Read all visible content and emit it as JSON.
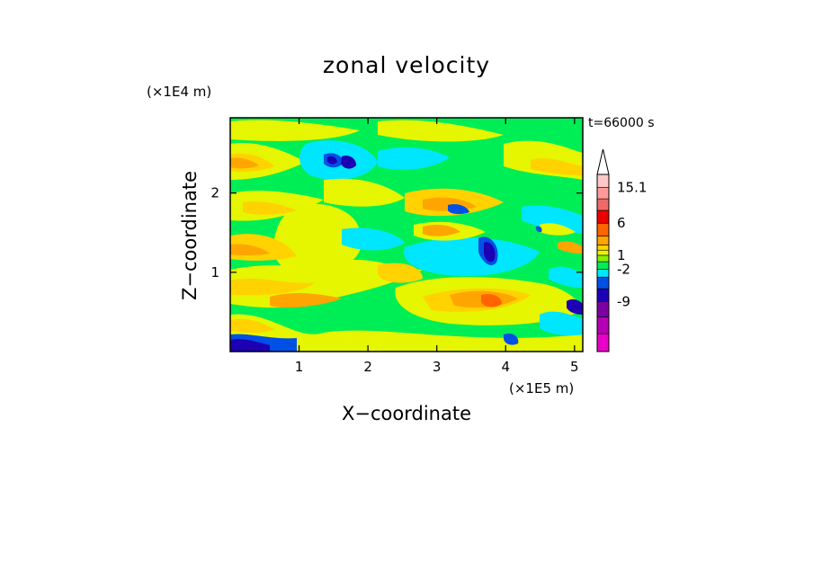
{
  "chart_data": {
    "type": "heatmap",
    "title": "zonal velocity",
    "xlabel": "X−coordinate",
    "ylabel": "Z−coordinate",
    "x_unit": "(×1E5 m)",
    "y_unit": "(×1E4 m)",
    "time_label": "t=66000 s",
    "xlim": [
      0,
      5.12
    ],
    "ylim": [
      0,
      2.95
    ],
    "xticks": [
      1,
      2,
      3,
      4,
      5
    ],
    "xtick_labels": [
      "1",
      "2",
      "3",
      "4",
      "5"
    ],
    "yticks": [
      1,
      2
    ],
    "ytick_labels": [
      "1",
      "2"
    ],
    "colorbar": {
      "levels": [
        "-9",
        "-2",
        "1",
        "6",
        "15.1"
      ],
      "colors": [
        "#e800c8",
        "#b400b4",
        "#7d00a0",
        "#1e00b4",
        "#0050e6",
        "#00e6ff",
        "#00ee55",
        "#88f000",
        "#e6f500",
        "#ffd200",
        "#ffa500",
        "#ff6400",
        "#eb0000",
        "#f06a6a",
        "#ff9a9a",
        "#ffc8c8"
      ]
    },
    "field_classes": [
      "negative-strong",
      "negative",
      "slightly-negative",
      "near-zero",
      "positive",
      "strongly-positive"
    ]
  }
}
